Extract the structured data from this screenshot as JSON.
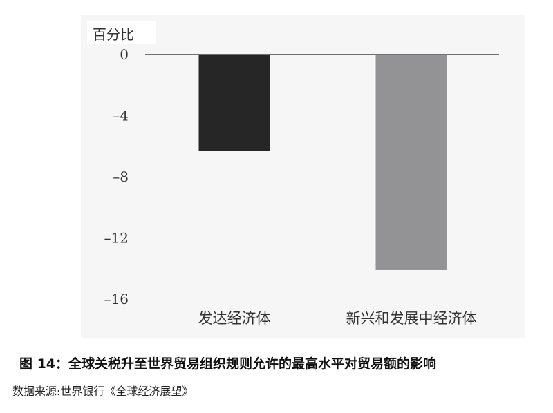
{
  "chart_data": {
    "type": "bar",
    "ylabel": "百分比",
    "categories": [
      "发达经济体",
      "新兴和发展中经济体"
    ],
    "values": [
      -6.3,
      -14.1
    ],
    "colors": [
      "#262626",
      "#939396"
    ],
    "ylim": [
      -16,
      0
    ],
    "yticks": [
      0,
      -4,
      -8,
      -12,
      -16
    ],
    "ytick_labels": [
      "0",
      "–4",
      "–8",
      "–12",
      "–16"
    ],
    "grid": false
  },
  "caption": "图 14：全球关税升至世界贸易组织规则允许的最高水平对贸易额的影响",
  "source": "数据来源:世界银行《全球经济展望》"
}
